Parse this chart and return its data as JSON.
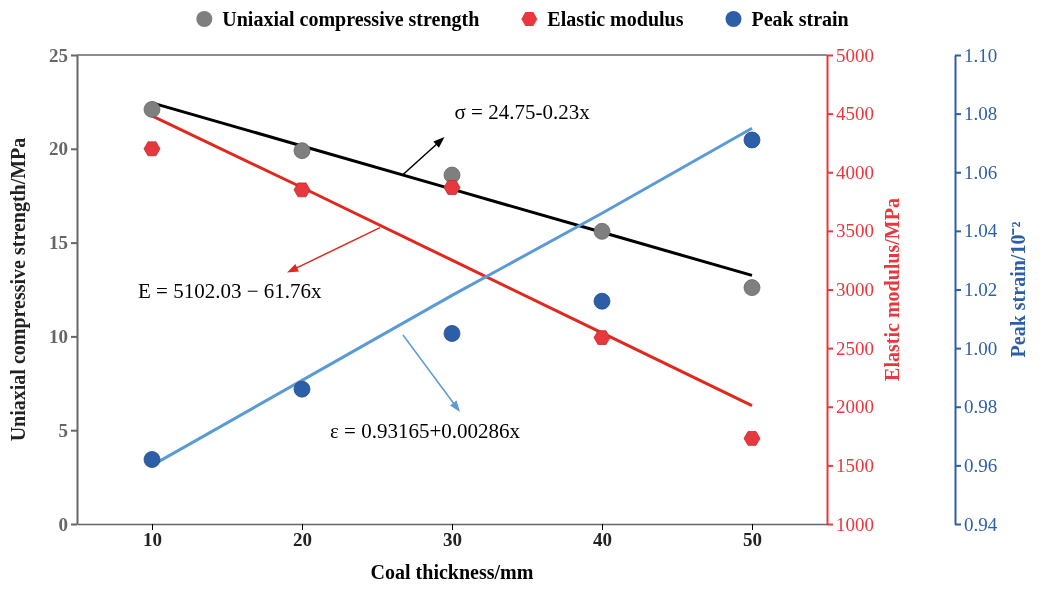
{
  "chart_data": {
    "type": "scatter",
    "xlabel": "Coal thickness/mm",
    "ylabel": "Uniaxial compressive strength/MPa",
    "y2label": "Elastic modulus/MPa",
    "y3label": "Peak strain/10⁻²",
    "x": [
      10,
      20,
      30,
      40,
      50
    ],
    "xlim": [
      5,
      55
    ],
    "xticks": [
      10,
      20,
      30,
      40,
      50
    ],
    "ylim": [
      0,
      25
    ],
    "yticks": [
      0,
      5,
      10,
      15,
      20,
      25
    ],
    "y2lim": [
      1000,
      5000
    ],
    "y2ticks": [
      1000,
      1500,
      2000,
      2500,
      3000,
      3500,
      4000,
      4500,
      5000
    ],
    "y3lim": [
      0.94,
      1.1
    ],
    "y3ticks": [
      {
        "value": 0.94,
        "label": "0.94"
      },
      {
        "value": 0.96,
        "label": "0.96"
      },
      {
        "value": 0.98,
        "label": "0.98"
      },
      {
        "value": 1,
        "label": "1.00"
      },
      {
        "value": 1.02,
        "label": "1.02"
      },
      {
        "value": 1.04,
        "label": "1.04"
      },
      {
        "value": 1.06,
        "label": "1.06"
      },
      {
        "value": 1.08,
        "label": "1.08"
      },
      {
        "value": 1.1,
        "label": "1.10"
      }
    ],
    "legend": "top",
    "series": [
      {
        "name": "Uniaxial compressive strength",
        "marker": "circle",
        "color": "#7f7f7f",
        "values": [
          22.1,
          19.9,
          18.6,
          15.6,
          12.6
        ]
      },
      {
        "name": "Elastic modulus",
        "axis": "y2",
        "color": "#e8383d",
        "values": [
          4200,
          3850,
          3870,
          2590,
          1730
        ]
      },
      {
        "name": "Peak strain",
        "axis": "y3",
        "marker": "circle",
        "color": "#2d5fa8",
        "values": [
          0.962,
          0.986,
          1.005,
          1.016,
          1.071
        ]
      },
      {
        "type": "line",
        "color": "#000000",
        "values": [
          22.45,
          20.15,
          17.85,
          15.55,
          13.25
        ]
      },
      {
        "type": "line",
        "axis": "y2",
        "color": "#e0281e",
        "values": [
          4480,
          3870,
          3250,
          2630,
          2010
        ]
      },
      {
        "type": "line",
        "axis": "y3",
        "color": "#5b9bd5",
        "values": [
          0.96,
          0.989,
          1.018,
          1.046,
          1.075
        ]
      }
    ],
    "annotations": [
      {
        "text": "σ = 24.75-0.23x",
        "x": 26.7,
        "y": 18.6
      },
      {
        "text": "E = 5102.03 − 61.76x",
        "x": 25.2,
        "y": 15.8
      },
      "ε = 0.93165+0.00286x"
    ]
  }
}
